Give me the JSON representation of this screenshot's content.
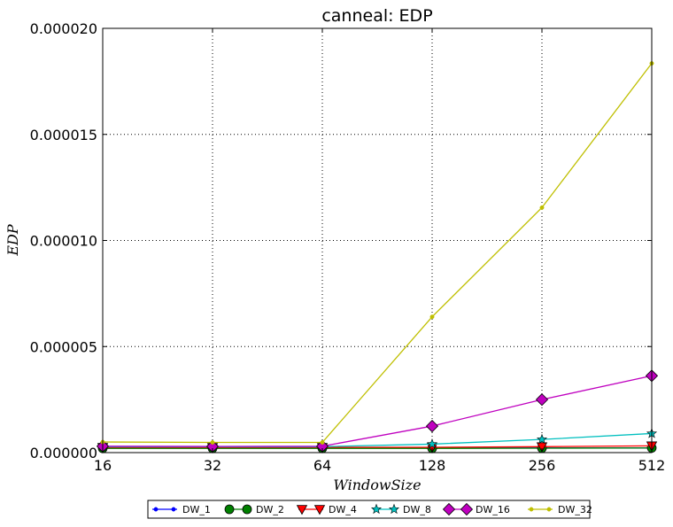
{
  "chart_data": {
    "type": "line",
    "title": "canneal: EDP",
    "xlabel": "WindowSize",
    "ylabel": "EDP",
    "x_scale": "log2",
    "x": [
      16,
      32,
      64,
      128,
      256,
      512
    ],
    "x_tick_labels": [
      "16",
      "32",
      "64",
      "128",
      "256",
      "512"
    ],
    "ylim": [
      0,
      2e-05
    ],
    "y_ticks": [
      0,
      5e-06,
      1e-05,
      1.5e-05,
      2e-05
    ],
    "y_tick_labels": [
      "0.000000",
      "0.000005",
      "0.000010",
      "0.000015",
      "0.000020"
    ],
    "grid": true,
    "legend_position": "below plot",
    "series": [
      {
        "name": "DW_1",
        "color": "#0000ff",
        "marker": "point",
        "values": [
          2.2e-07,
          2.2e-07,
          2.2e-07,
          2.2e-07,
          2.2e-07,
          2.2e-07
        ]
      },
      {
        "name": "DW_2",
        "color": "#008000",
        "marker": "circle",
        "values": [
          2e-07,
          2e-07,
          2e-07,
          2e-07,
          2.1e-07,
          2.2e-07
        ]
      },
      {
        "name": "DW_4",
        "color": "#ff0000",
        "marker": "triangle",
        "values": [
          2.5e-07,
          2.5e-07,
          2.5e-07,
          2.5e-07,
          2.8e-07,
          3.2e-07
        ]
      },
      {
        "name": "DW_8",
        "color": "#00bfbf",
        "marker": "star",
        "values": [
          2.8e-07,
          2.8e-07,
          2.8e-07,
          4e-07,
          6.2e-07,
          9e-07
        ]
      },
      {
        "name": "DW_16",
        "color": "#bf00bf",
        "marker": "diamond",
        "values": [
          3e-07,
          2.9e-07,
          3e-07,
          1.25e-06,
          2.5e-06,
          3.62e-06
        ]
      },
      {
        "name": "DW_32",
        "color": "#bfbf00",
        "marker": "point",
        "values": [
          5e-07,
          4.8e-07,
          4.8e-07,
          6.4e-06,
          1.155e-05,
          1.835e-05
        ]
      }
    ]
  }
}
